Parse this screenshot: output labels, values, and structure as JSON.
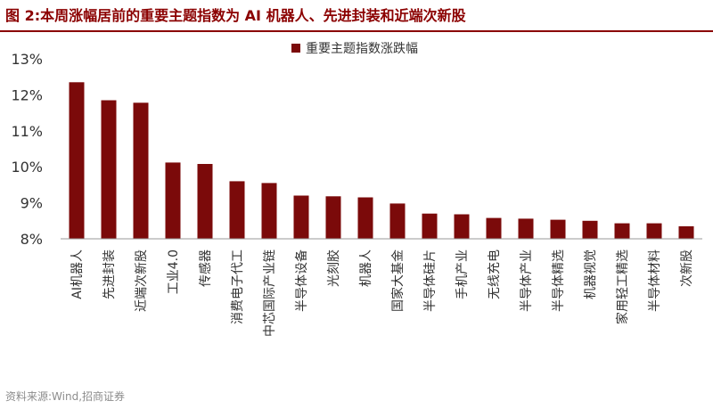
{
  "title": "图 2:本周涨幅居前的重要主题指数为 AI 机器人、先进封装和近端次新股",
  "source": "资料来源:Wind,招商证券",
  "colors": {
    "bar": "#7B0A0A",
    "title": "#8B0000",
    "axis": "#999999"
  },
  "chart_data": {
    "type": "bar",
    "categories": [
      "AI机器人",
      "先进封装",
      "近端次新股",
      "工业4.0",
      "传感器",
      "消费电子代工",
      "中芯国际产业链",
      "半导体设备",
      "光刻胶",
      "机器人",
      "国家大基金",
      "半导体硅片",
      "手机产业",
      "无线充电",
      "半导体产业",
      "半导体精选",
      "机器视觉",
      "家用轻工精选",
      "半导体材料",
      "次新股"
    ],
    "series": [
      {
        "name": "重要主题指数涨跌幅",
        "values": [
          12.35,
          11.85,
          11.78,
          10.12,
          10.08,
          9.6,
          9.55,
          9.2,
          9.18,
          9.15,
          8.98,
          8.7,
          8.68,
          8.58,
          8.56,
          8.53,
          8.5,
          8.43,
          8.43,
          8.35
        ]
      }
    ],
    "yticks": [
      "8%",
      "9%",
      "10%",
      "11%",
      "12%",
      "13%"
    ],
    "ylim": [
      8,
      13
    ],
    "legend_position": "top-center",
    "grid": false
  }
}
